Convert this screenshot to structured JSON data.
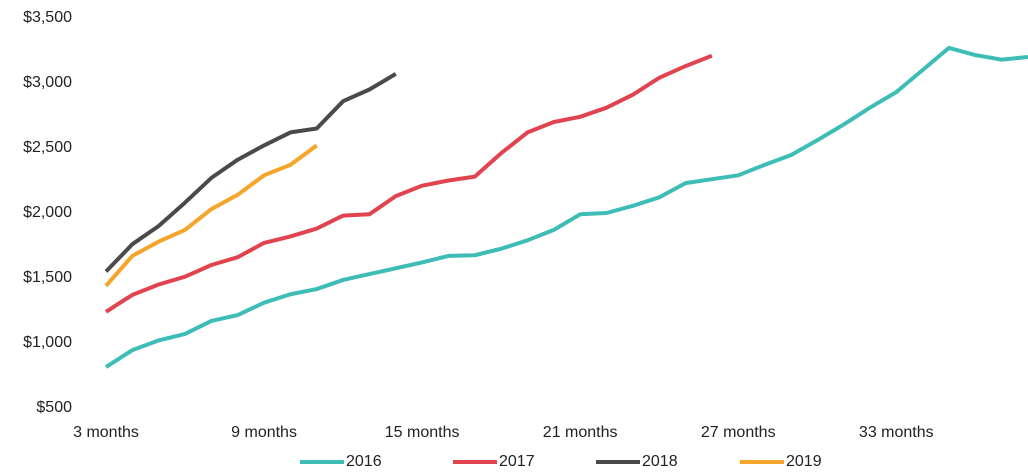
{
  "chart_data": {
    "type": "line",
    "x": [
      3,
      4,
      5,
      6,
      7,
      8,
      9,
      10,
      11,
      12,
      13,
      14,
      15,
      16,
      17,
      18,
      19,
      20,
      21,
      22,
      23,
      24,
      25,
      26,
      27,
      28,
      29,
      30,
      31,
      32,
      33,
      34,
      35,
      36,
      37,
      38
    ],
    "xlim": [
      3,
      38
    ],
    "xticks": [
      {
        "value": 3,
        "label": "3 months"
      },
      {
        "value": 9,
        "label": "9 months"
      },
      {
        "value": 15,
        "label": "15 months"
      },
      {
        "value": 21,
        "label": "21 months"
      },
      {
        "value": 27,
        "label": "27 months"
      },
      {
        "value": 33,
        "label": "33 months"
      }
    ],
    "ylim": [
      500,
      3500
    ],
    "yticks": [
      {
        "value": 500,
        "label": "$500"
      },
      {
        "value": 1000,
        "label": "$1,000"
      },
      {
        "value": 1500,
        "label": "$1,500"
      },
      {
        "value": 2000,
        "label": "$2,000"
      },
      {
        "value": 2500,
        "label": "$2,500"
      },
      {
        "value": 3000,
        "label": "$3,000"
      },
      {
        "value": 3500,
        "label": "$3,500"
      }
    ],
    "grid": false,
    "legend": "bottom",
    "series": [
      {
        "name": "2016",
        "color": "#3dbdb6",
        "values": [
          815,
          945,
          1020,
          1070,
          1170,
          1215,
          1310,
          1375,
          1415,
          1485,
          1530,
          1575,
          1620,
          1670,
          1675,
          1725,
          1790,
          1870,
          1990,
          2000,
          2055,
          2120,
          2230,
          2260,
          2290,
          2370,
          2445,
          2560,
          2680,
          2810,
          2930,
          3100,
          3270,
          3215,
          3180,
          3200
        ]
      },
      {
        "name": "2017",
        "color": "#e1434f",
        "values": [
          1240,
          1370,
          1450,
          1510,
          1600,
          1660,
          1770,
          1820,
          1880,
          1980,
          1990,
          2130,
          2210,
          2250,
          2280,
          2460,
          2620,
          2700,
          2740,
          2810,
          2910,
          3040,
          3130,
          3210,
          null,
          null,
          null,
          null,
          null,
          null,
          null,
          null,
          null,
          null,
          null,
          null
        ]
      },
      {
        "name": "2018",
        "color": "#4a4a4a",
        "values": [
          1550,
          1760,
          1900,
          2080,
          2270,
          2410,
          2520,
          2620,
          2650,
          2860,
          2950,
          3070,
          null,
          null,
          null,
          null,
          null,
          null,
          null,
          null,
          null,
          null,
          null,
          null,
          null,
          null,
          null,
          null,
          null,
          null,
          null,
          null,
          null,
          null,
          null,
          null
        ]
      },
      {
        "name": "2019",
        "color": "#f4a52a",
        "values": [
          1440,
          1670,
          1780,
          1870,
          2030,
          2140,
          2290,
          2370,
          2520,
          null,
          null,
          null,
          null,
          null,
          null,
          null,
          null,
          null,
          null,
          null,
          null,
          null,
          null,
          null,
          null,
          null,
          null,
          null,
          null,
          null,
          null,
          null,
          null,
          null,
          null,
          null
        ]
      }
    ]
  }
}
